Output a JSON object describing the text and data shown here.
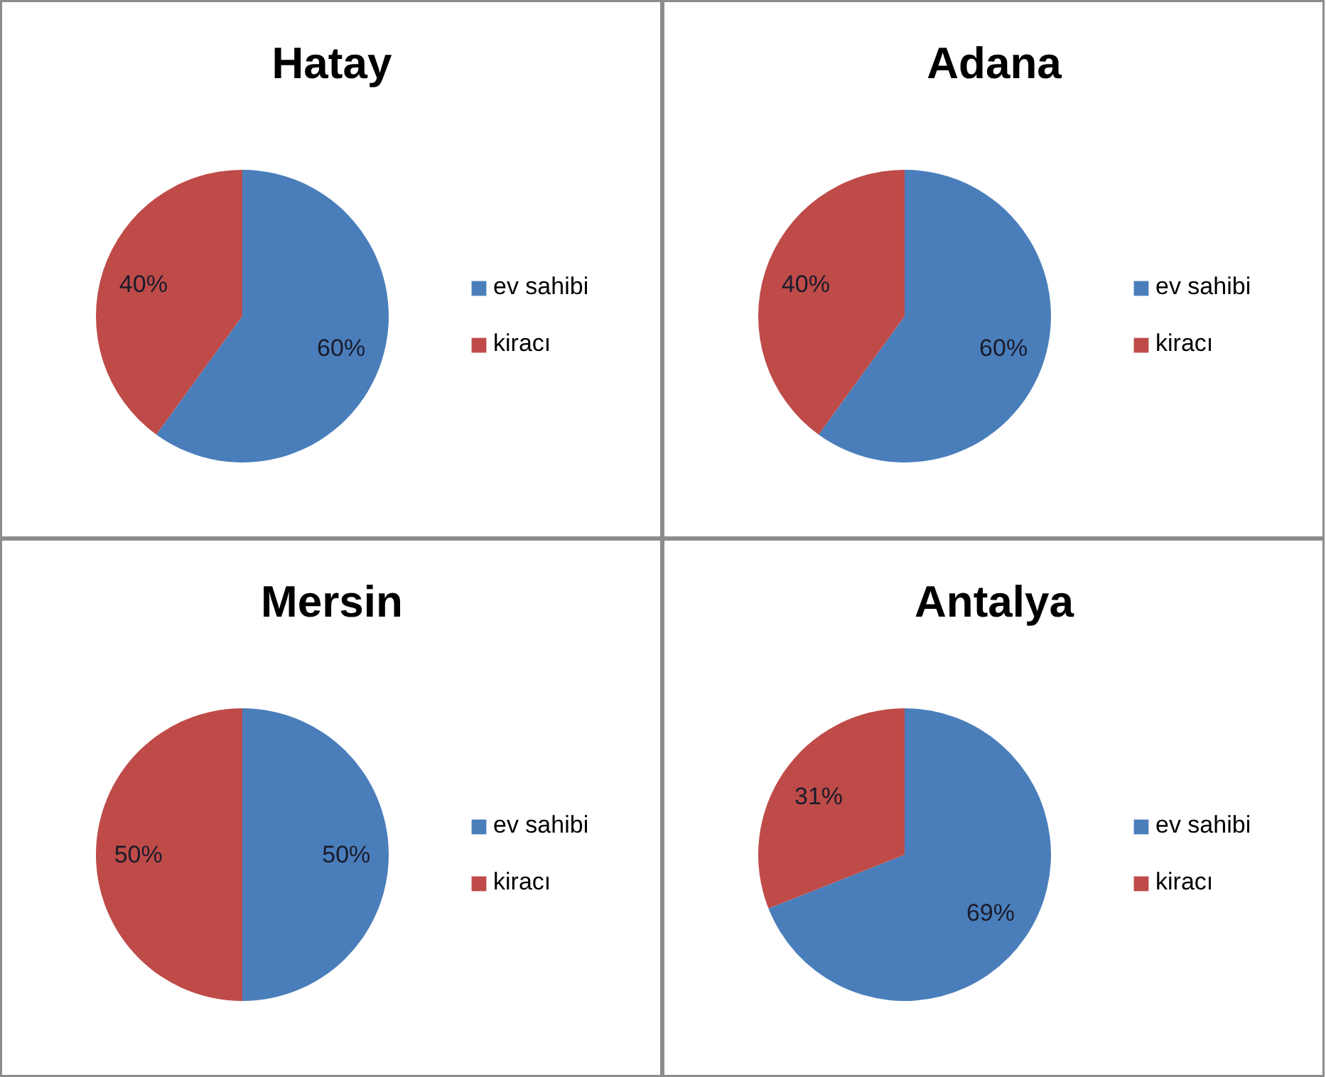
{
  "chart_data": [
    {
      "type": "pie",
      "title": "Hatay",
      "categories": [
        "ev sahibi",
        "kiracı"
      ],
      "values": [
        60,
        40
      ],
      "colors": [
        "#4a7ebb",
        "#be4b48"
      ],
      "value_labels": [
        "60%",
        "40%"
      ],
      "legend": "right"
    },
    {
      "type": "pie",
      "title": "Adana",
      "categories": [
        "ev sahibi",
        "kiracı"
      ],
      "values": [
        60,
        40
      ],
      "colors": [
        "#4a7ebb",
        "#be4b48"
      ],
      "value_labels": [
        "60%",
        "40%"
      ],
      "legend": "right"
    },
    {
      "type": "pie",
      "title": "Mersin",
      "categories": [
        "ev sahibi",
        "kiracı"
      ],
      "values": [
        50,
        50
      ],
      "colors": [
        "#4a7ebb",
        "#be4b48"
      ],
      "value_labels": [
        "50%",
        "50%"
      ],
      "legend": "right"
    },
    {
      "type": "pie",
      "title": "Antalya",
      "categories": [
        "ev sahibi",
        "kiracı"
      ],
      "values": [
        69,
        31
      ],
      "colors": [
        "#4a7ebb",
        "#be4b48"
      ],
      "value_labels": [
        "69%",
        "31%"
      ],
      "legend": "right"
    }
  ]
}
